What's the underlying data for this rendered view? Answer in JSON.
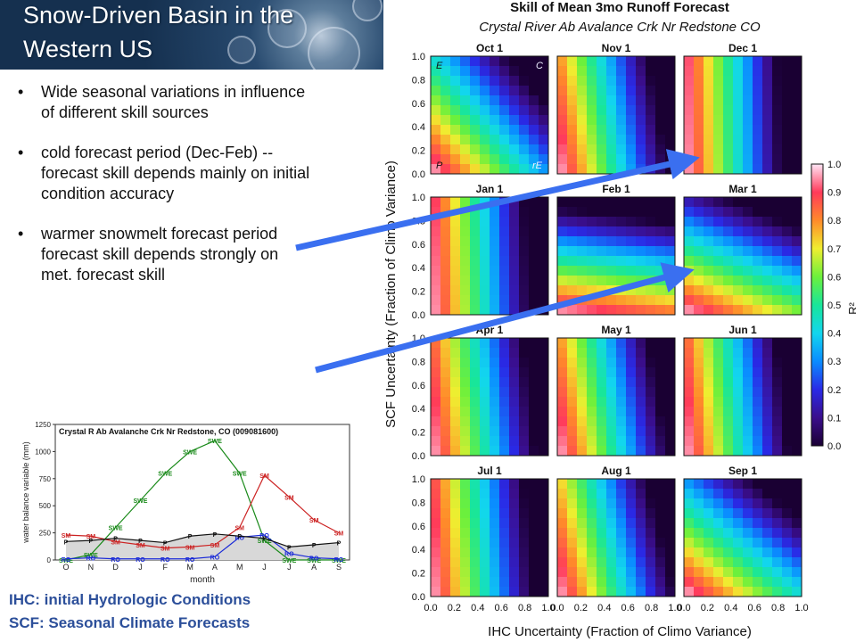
{
  "slide": {
    "title": "Snow-Driven Basin in the Western US",
    "bullets": [
      "Wide seasonal  variations in influence of different skill sources",
      "cold forecast period (Dec-Feb) -- forecast skill depends mainly on initial condition accuracy",
      "warmer snowmelt forecast period forecast skill depends strongly on met. forecast skill"
    ],
    "footnotes": [
      "IHC:  initial Hydrologic Conditions",
      "SCF:  Seasonal Climate Forecasts"
    ],
    "colors": {
      "arrow": "#3a6ff0",
      "footnote": "#2c4f9a"
    }
  },
  "chart_data": [
    {
      "type": "line",
      "title": "Crystal R Ab Avalanche Crk Nr Redstone, CO (009081600)",
      "xlabel": "month",
      "ylabel": "water balance variable (mm)",
      "categories": [
        "O",
        "N",
        "D",
        "J",
        "F",
        "M",
        "A",
        "M",
        "J",
        "J",
        "A",
        "S"
      ],
      "ylim": [
        0,
        1250
      ],
      "yticks": [
        0,
        250,
        500,
        750,
        1000,
        1250
      ],
      "series": [
        {
          "name": "SWE",
          "color": "#1a8a1a",
          "values": [
            0,
            50,
            300,
            550,
            800,
            1000,
            1100,
            800,
            180,
            0,
            0,
            0
          ]
        },
        {
          "name": "SM",
          "color": "#cc2222",
          "values": [
            230,
            220,
            170,
            140,
            110,
            120,
            140,
            300,
            780,
            580,
            370,
            250
          ]
        },
        {
          "name": "RO",
          "color": "#1a2ad8",
          "values": [
            10,
            20,
            10,
            10,
            10,
            10,
            30,
            210,
            230,
            60,
            20,
            10
          ]
        },
        {
          "name": "P",
          "color": "#111111",
          "values": [
            170,
            180,
            200,
            180,
            160,
            220,
            240,
            220,
            200,
            120,
            140,
            160
          ]
        }
      ]
    },
    {
      "type": "heatmap",
      "title": "Skill of Mean 3mo Runoff Forecast",
      "subtitle": "Crystal River Ab Avalance Crk Nr Redstone CO",
      "xlabel": "IHC Uncertainty (Fraction of Climo Variance)",
      "ylabel": "SCF Uncertainty (Fraction of Climo Variance)",
      "colorbar_label": "R²",
      "xlim": [
        0,
        1
      ],
      "ylim": [
        0,
        1
      ],
      "clim": [
        0,
        1
      ],
      "xticks": [
        "0.0",
        "0.2",
        "0.4",
        "0.6",
        "0.8",
        "1.0"
      ],
      "yticks": [
        "0.0",
        "0.2",
        "0.4",
        "0.6",
        "0.8",
        "1.0"
      ],
      "colorbar_ticks": [
        "0.0",
        "0.1",
        "0.2",
        "0.3",
        "0.4",
        "0.5",
        "0.6",
        "0.7",
        "0.8",
        "0.9",
        "1.0"
      ],
      "panels": [
        {
          "label": "Oct 1",
          "corners": {
            "top_left": "E",
            "top_right": "C",
            "bottom_left": "P",
            "bottom_right": "rE"
          },
          "ihc_weight": 0.55
        },
        {
          "label": "Nov 1",
          "ihc_weight": 0.85
        },
        {
          "label": "Dec 1",
          "ihc_weight": 0.97
        },
        {
          "label": "Jan 1",
          "ihc_weight": 0.96
        },
        {
          "label": "Feb 1",
          "ihc_weight": 0.12
        },
        {
          "label": "Mar 1",
          "ihc_weight": 0.3
        },
        {
          "label": "Apr 1",
          "ihc_weight": 0.9
        },
        {
          "label": "May 1",
          "ihc_weight": 0.85
        },
        {
          "label": "Jun 1",
          "ihc_weight": 0.9
        },
        {
          "label": "Jul 1",
          "ihc_weight": 0.93
        },
        {
          "label": "Aug 1",
          "ihc_weight": 0.8
        },
        {
          "label": "Sep 1",
          "ihc_weight": 0.45
        }
      ]
    }
  ]
}
